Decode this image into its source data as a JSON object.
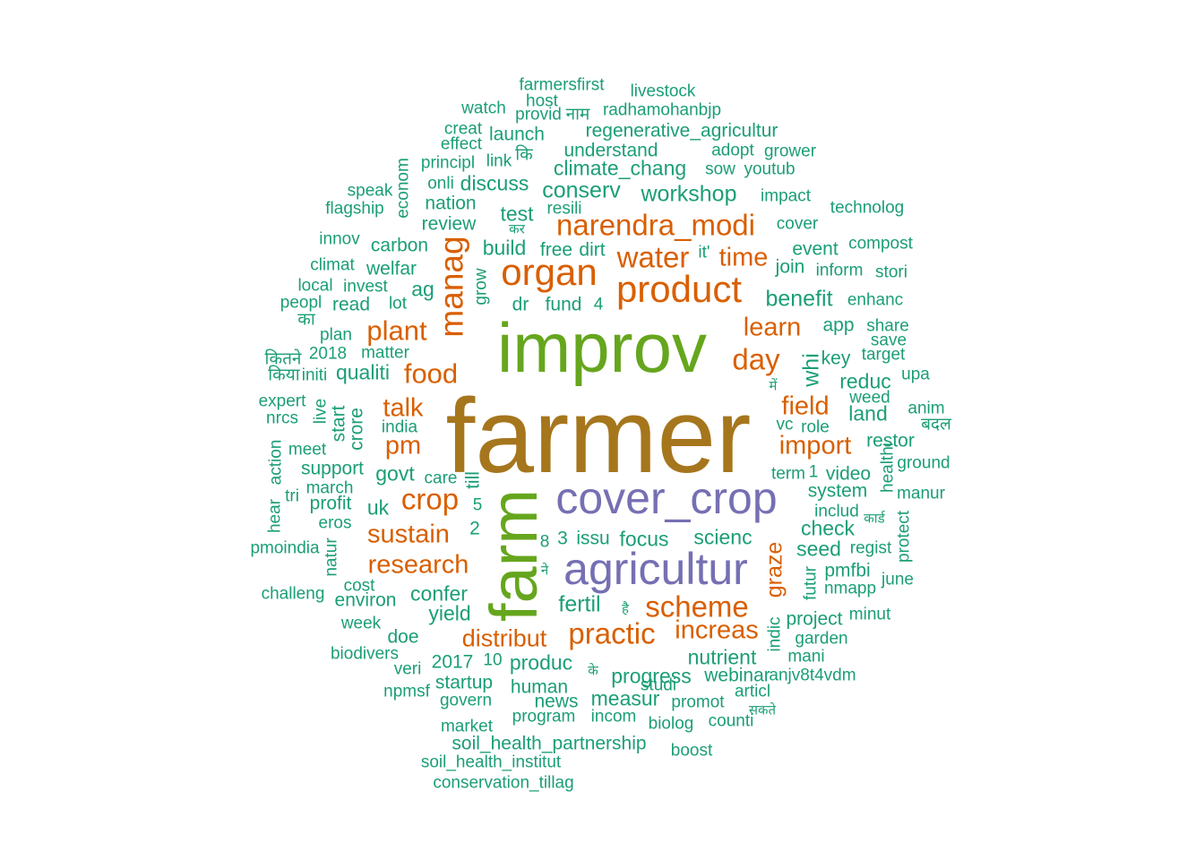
{
  "colors": {
    "teal": "#1b9e77",
    "orange": "#d95f02",
    "purple": "#7570b3",
    "green": "#66a61e",
    "gold": "#a6761d"
  },
  "words": [
    {
      "t": "farmer",
      "c": "gold",
      "w": "largest"
    },
    {
      "t": "improv",
      "c": "green"
    },
    {
      "t": "farm",
      "c": "green"
    },
    {
      "t": "cover_crop",
      "c": "purple"
    },
    {
      "t": "agricultur",
      "c": "purple"
    },
    {
      "t": "organ",
      "c": "orange"
    },
    {
      "t": "product",
      "c": "orange"
    },
    {
      "t": "narendra_modi",
      "c": "orange"
    },
    {
      "t": "water",
      "c": "orange"
    },
    {
      "t": "manag",
      "c": "orange"
    },
    {
      "t": "crop",
      "c": "orange"
    },
    {
      "t": "scheme",
      "c": "orange"
    },
    {
      "t": "practic",
      "c": "orange"
    },
    {
      "t": "food",
      "c": "orange"
    },
    {
      "t": "plant",
      "c": "orange"
    },
    {
      "t": "day",
      "c": "orange"
    },
    {
      "t": "research",
      "c": "orange"
    },
    {
      "t": "sustain",
      "c": "orange"
    },
    {
      "t": "talk",
      "c": "orange"
    },
    {
      "t": "learn",
      "c": "orange"
    },
    {
      "t": "time",
      "c": "orange"
    },
    {
      "t": "field",
      "c": "orange"
    },
    {
      "t": "import",
      "c": "orange"
    },
    {
      "t": "pm",
      "c": "orange"
    },
    {
      "t": "increas",
      "c": "orange"
    },
    {
      "t": "distribut",
      "c": "orange"
    },
    {
      "t": "graze",
      "c": "orange"
    },
    {
      "t": "farmersfirst",
      "c": "teal"
    },
    {
      "t": "host",
      "c": "teal"
    },
    {
      "t": "livestock",
      "c": "teal"
    },
    {
      "t": "watch",
      "c": "teal"
    },
    {
      "t": "provid",
      "c": "teal"
    },
    {
      "t": "नाम",
      "c": "teal"
    },
    {
      "t": "radhamohanbjp",
      "c": "teal"
    },
    {
      "t": "creat",
      "c": "teal"
    },
    {
      "t": "launch",
      "c": "teal"
    },
    {
      "t": "regenerative_agricultur",
      "c": "teal"
    },
    {
      "t": "effect",
      "c": "teal"
    },
    {
      "t": "understand",
      "c": "teal"
    },
    {
      "t": "adopt",
      "c": "teal"
    },
    {
      "t": "grower",
      "c": "teal"
    },
    {
      "t": "principl",
      "c": "teal"
    },
    {
      "t": "link",
      "c": "teal"
    },
    {
      "t": "कि",
      "c": "teal"
    },
    {
      "t": "climate_chang",
      "c": "teal"
    },
    {
      "t": "sow",
      "c": "teal"
    },
    {
      "t": "youtub",
      "c": "teal"
    },
    {
      "t": "econom",
      "c": "teal"
    },
    {
      "t": "onli",
      "c": "teal"
    },
    {
      "t": "discuss",
      "c": "teal"
    },
    {
      "t": "conserv",
      "c": "teal"
    },
    {
      "t": "workshop",
      "c": "teal"
    },
    {
      "t": "speak",
      "c": "teal"
    },
    {
      "t": "impact",
      "c": "teal"
    },
    {
      "t": "flagship",
      "c": "teal"
    },
    {
      "t": "nation",
      "c": "teal"
    },
    {
      "t": "resili",
      "c": "teal"
    },
    {
      "t": "technolog",
      "c": "teal"
    },
    {
      "t": "test",
      "c": "teal"
    },
    {
      "t": "review",
      "c": "teal"
    },
    {
      "t": "cover",
      "c": "teal"
    },
    {
      "t": "कर",
      "c": "teal"
    },
    {
      "t": "innov",
      "c": "teal"
    },
    {
      "t": "carbon",
      "c": "teal"
    },
    {
      "t": "build",
      "c": "teal"
    },
    {
      "t": "free",
      "c": "teal"
    },
    {
      "t": "dirt",
      "c": "teal"
    },
    {
      "t": "it'",
      "c": "teal"
    },
    {
      "t": "event",
      "c": "teal"
    },
    {
      "t": "compost",
      "c": "teal"
    },
    {
      "t": "climat",
      "c": "teal"
    },
    {
      "t": "welfar",
      "c": "teal"
    },
    {
      "t": "join",
      "c": "teal"
    },
    {
      "t": "inform",
      "c": "teal"
    },
    {
      "t": "stori",
      "c": "teal"
    },
    {
      "t": "local",
      "c": "teal"
    },
    {
      "t": "invest",
      "c": "teal"
    },
    {
      "t": "ag",
      "c": "teal"
    },
    {
      "t": "grow",
      "c": "teal"
    },
    {
      "t": "benefit",
      "c": "teal"
    },
    {
      "t": "enhanc",
      "c": "teal"
    },
    {
      "t": "peopl",
      "c": "teal"
    },
    {
      "t": "read",
      "c": "teal"
    },
    {
      "t": "lot",
      "c": "teal"
    },
    {
      "t": "dr",
      "c": "teal"
    },
    {
      "t": "fund",
      "c": "teal"
    },
    {
      "t": "4",
      "c": "teal"
    },
    {
      "t": "का",
      "c": "teal"
    },
    {
      "t": "app",
      "c": "teal"
    },
    {
      "t": "share",
      "c": "teal"
    },
    {
      "t": "plan",
      "c": "teal"
    },
    {
      "t": "save",
      "c": "teal"
    },
    {
      "t": "कितने",
      "c": "teal"
    },
    {
      "t": "2018",
      "c": "teal"
    },
    {
      "t": "matter",
      "c": "teal"
    },
    {
      "t": "key",
      "c": "teal"
    },
    {
      "t": "target",
      "c": "teal"
    },
    {
      "t": "किया",
      "c": "teal"
    },
    {
      "t": "initi",
      "c": "teal"
    },
    {
      "t": "qualiti",
      "c": "teal"
    },
    {
      "t": "whi",
      "c": "teal"
    },
    {
      "t": "upa",
      "c": "teal"
    },
    {
      "t": "reduc",
      "c": "teal"
    },
    {
      "t": "में",
      "c": "teal"
    },
    {
      "t": "weed",
      "c": "teal"
    },
    {
      "t": "expert",
      "c": "teal"
    },
    {
      "t": "live",
      "c": "teal"
    },
    {
      "t": "land",
      "c": "teal"
    },
    {
      "t": "anim",
      "c": "teal"
    },
    {
      "t": "nrcs",
      "c": "teal"
    },
    {
      "t": "india",
      "c": "teal"
    },
    {
      "t": "start",
      "c": "teal"
    },
    {
      "t": "crore",
      "c": "teal"
    },
    {
      "t": "vc",
      "c": "teal"
    },
    {
      "t": "role",
      "c": "teal"
    },
    {
      "t": "बदल",
      "c": "teal"
    },
    {
      "t": "restor",
      "c": "teal"
    },
    {
      "t": "meet",
      "c": "teal"
    },
    {
      "t": "action",
      "c": "teal"
    },
    {
      "t": "healthi",
      "c": "teal"
    },
    {
      "t": "ground",
      "c": "teal"
    },
    {
      "t": "support",
      "c": "teal"
    },
    {
      "t": "govt",
      "c": "teal"
    },
    {
      "t": "care",
      "c": "teal"
    },
    {
      "t": "till",
      "c": "teal"
    },
    {
      "t": "term",
      "c": "teal"
    },
    {
      "t": "1",
      "c": "teal"
    },
    {
      "t": "video",
      "c": "teal"
    },
    {
      "t": "tri",
      "c": "teal"
    },
    {
      "t": "march",
      "c": "teal"
    },
    {
      "t": "system",
      "c": "teal"
    },
    {
      "t": "manur",
      "c": "teal"
    },
    {
      "t": "profit",
      "c": "teal"
    },
    {
      "t": "5",
      "c": "teal"
    },
    {
      "t": "includ",
      "c": "teal"
    },
    {
      "t": "hear",
      "c": "teal"
    },
    {
      "t": "uk",
      "c": "teal"
    },
    {
      "t": "कार्ड",
      "c": "teal"
    },
    {
      "t": "eros",
      "c": "teal"
    },
    {
      "t": "2",
      "c": "teal"
    },
    {
      "t": "check",
      "c": "teal"
    },
    {
      "t": "protect",
      "c": "teal"
    },
    {
      "t": "pmoindia",
      "c": "teal"
    },
    {
      "t": "natur",
      "c": "teal"
    },
    {
      "t": "8",
      "c": "teal"
    },
    {
      "t": "3",
      "c": "teal"
    },
    {
      "t": "issu",
      "c": "teal"
    },
    {
      "t": "focus",
      "c": "teal"
    },
    {
      "t": "scienc",
      "c": "teal"
    },
    {
      "t": "seed",
      "c": "teal"
    },
    {
      "t": "regist",
      "c": "teal"
    },
    {
      "t": "ने",
      "c": "teal"
    },
    {
      "t": "futur",
      "c": "teal"
    },
    {
      "t": "pmfbi",
      "c": "teal"
    },
    {
      "t": "cost",
      "c": "teal"
    },
    {
      "t": "confer",
      "c": "teal"
    },
    {
      "t": "june",
      "c": "teal"
    },
    {
      "t": "challeng",
      "c": "teal"
    },
    {
      "t": "environ",
      "c": "teal"
    },
    {
      "t": "nmapp",
      "c": "teal"
    },
    {
      "t": "fertil",
      "c": "teal"
    },
    {
      "t": "है",
      "c": "teal"
    },
    {
      "t": "yield",
      "c": "teal"
    },
    {
      "t": "week",
      "c": "teal"
    },
    {
      "t": "minut",
      "c": "teal"
    },
    {
      "t": "project",
      "c": "teal"
    },
    {
      "t": "doe",
      "c": "teal"
    },
    {
      "t": "indic",
      "c": "teal"
    },
    {
      "t": "garden",
      "c": "teal"
    },
    {
      "t": "biodivers",
      "c": "teal"
    },
    {
      "t": "nutrient",
      "c": "teal"
    },
    {
      "t": "mani",
      "c": "teal"
    },
    {
      "t": "2017",
      "c": "teal"
    },
    {
      "t": "10",
      "c": "teal"
    },
    {
      "t": "produc",
      "c": "teal"
    },
    {
      "t": "veri",
      "c": "teal"
    },
    {
      "t": "के",
      "c": "teal"
    },
    {
      "t": "progress",
      "c": "teal"
    },
    {
      "t": "webinar",
      "c": "teal"
    },
    {
      "t": "anjv8t4vdm",
      "c": "teal"
    },
    {
      "t": "startup",
      "c": "teal"
    },
    {
      "t": "studi",
      "c": "teal"
    },
    {
      "t": "npmsf",
      "c": "teal"
    },
    {
      "t": "human",
      "c": "teal"
    },
    {
      "t": "articl",
      "c": "teal"
    },
    {
      "t": "govern",
      "c": "teal"
    },
    {
      "t": "news",
      "c": "teal"
    },
    {
      "t": "measur",
      "c": "teal"
    },
    {
      "t": "promot",
      "c": "teal"
    },
    {
      "t": "सकते",
      "c": "teal"
    },
    {
      "t": "market",
      "c": "teal"
    },
    {
      "t": "program",
      "c": "teal"
    },
    {
      "t": "incom",
      "c": "teal"
    },
    {
      "t": "biolog",
      "c": "teal"
    },
    {
      "t": "counti",
      "c": "teal"
    },
    {
      "t": "soil_health_partnership",
      "c": "teal"
    },
    {
      "t": "boost",
      "c": "teal"
    },
    {
      "t": "soil_health_institut",
      "c": "teal"
    },
    {
      "t": "conservation_tillag",
      "c": "teal"
    }
  ]
}
